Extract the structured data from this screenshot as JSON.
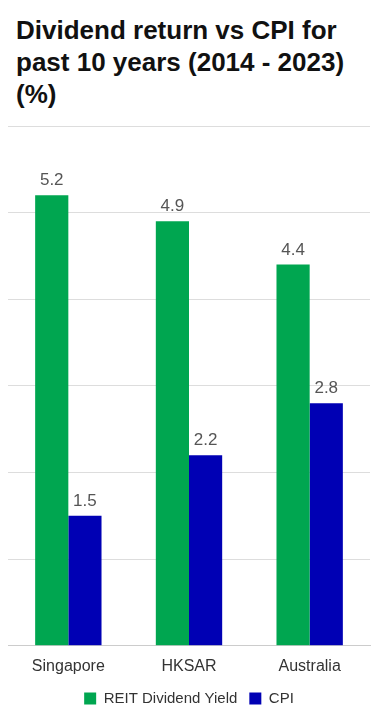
{
  "chart_data": {
    "type": "bar",
    "title": "Dividend return vs CPI for past 10 years (2014 - 2023) (%)",
    "categories": [
      "Singapore",
      "HKSAR",
      "Australia"
    ],
    "series": [
      {
        "name": "REIT Dividend Yield",
        "color": "#00a650",
        "values": [
          5.2,
          4.9,
          4.4
        ]
      },
      {
        "name": "CPI",
        "color": "#0000b4",
        "values": [
          1.5,
          2.2,
          2.8
        ]
      }
    ],
    "ylim": [
      0,
      6
    ],
    "yticks": [
      0,
      1,
      2,
      3,
      4,
      5,
      6
    ],
    "grid": true,
    "legend": "bottom",
    "data_labels": true,
    "tick_labels": "x"
  }
}
